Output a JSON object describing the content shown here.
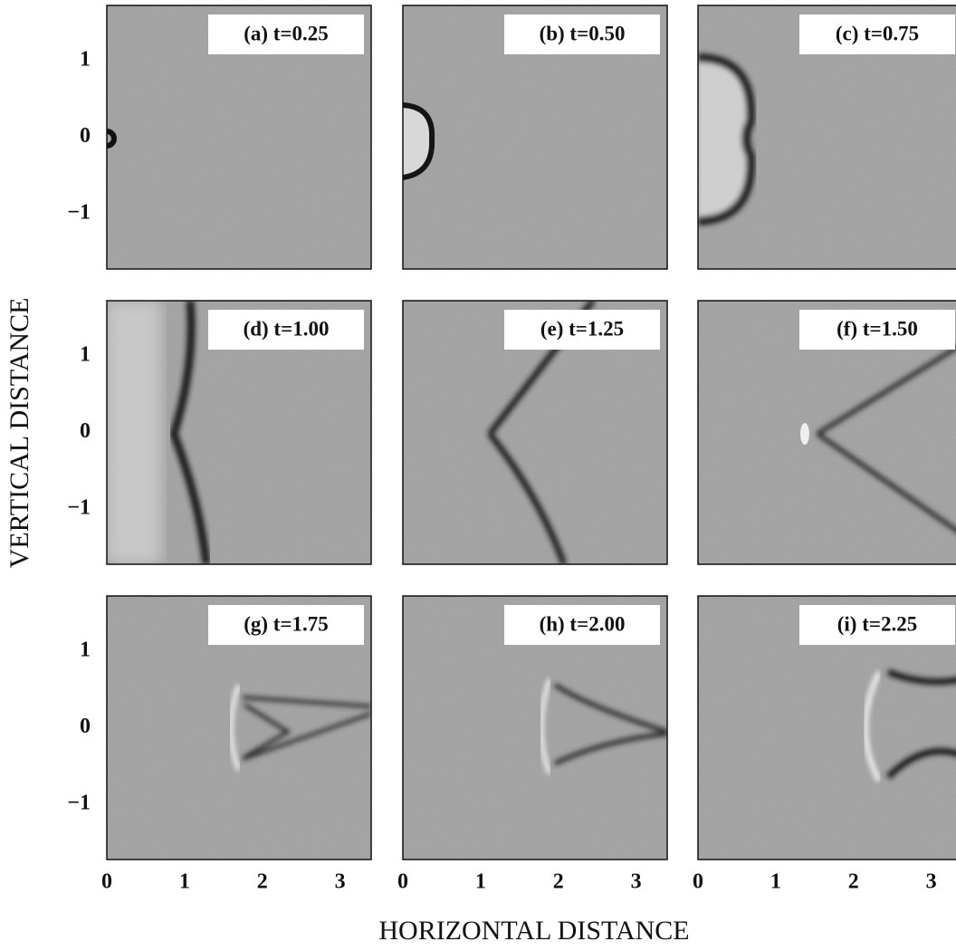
{
  "x_axis_label": "HORIZONTAL DISTANCE",
  "y_axis_label": "VERTICAL DISTANCE",
  "xlim": [
    0,
    3.4
  ],
  "ylim": [
    -1.72,
    1.72
  ],
  "xticks": [
    0,
    1,
    2,
    3
  ],
  "yticks": [
    {
      "value": -1,
      "label": "−1"
    },
    0,
    1
  ],
  "panels": [
    {
      "label": "(a) t=0.25"
    },
    {
      "label": "(b) t=0.50"
    },
    {
      "label": "(c) t=0.75"
    },
    {
      "label": "(d) t=1.00"
    },
    {
      "label": "(e) t=1.25"
    },
    {
      "label": "(f) t=1.50"
    },
    {
      "label": "(g) t=1.75"
    },
    {
      "label": "(h) t=2.00"
    },
    {
      "label": "(i) t=2.25"
    }
  ]
}
